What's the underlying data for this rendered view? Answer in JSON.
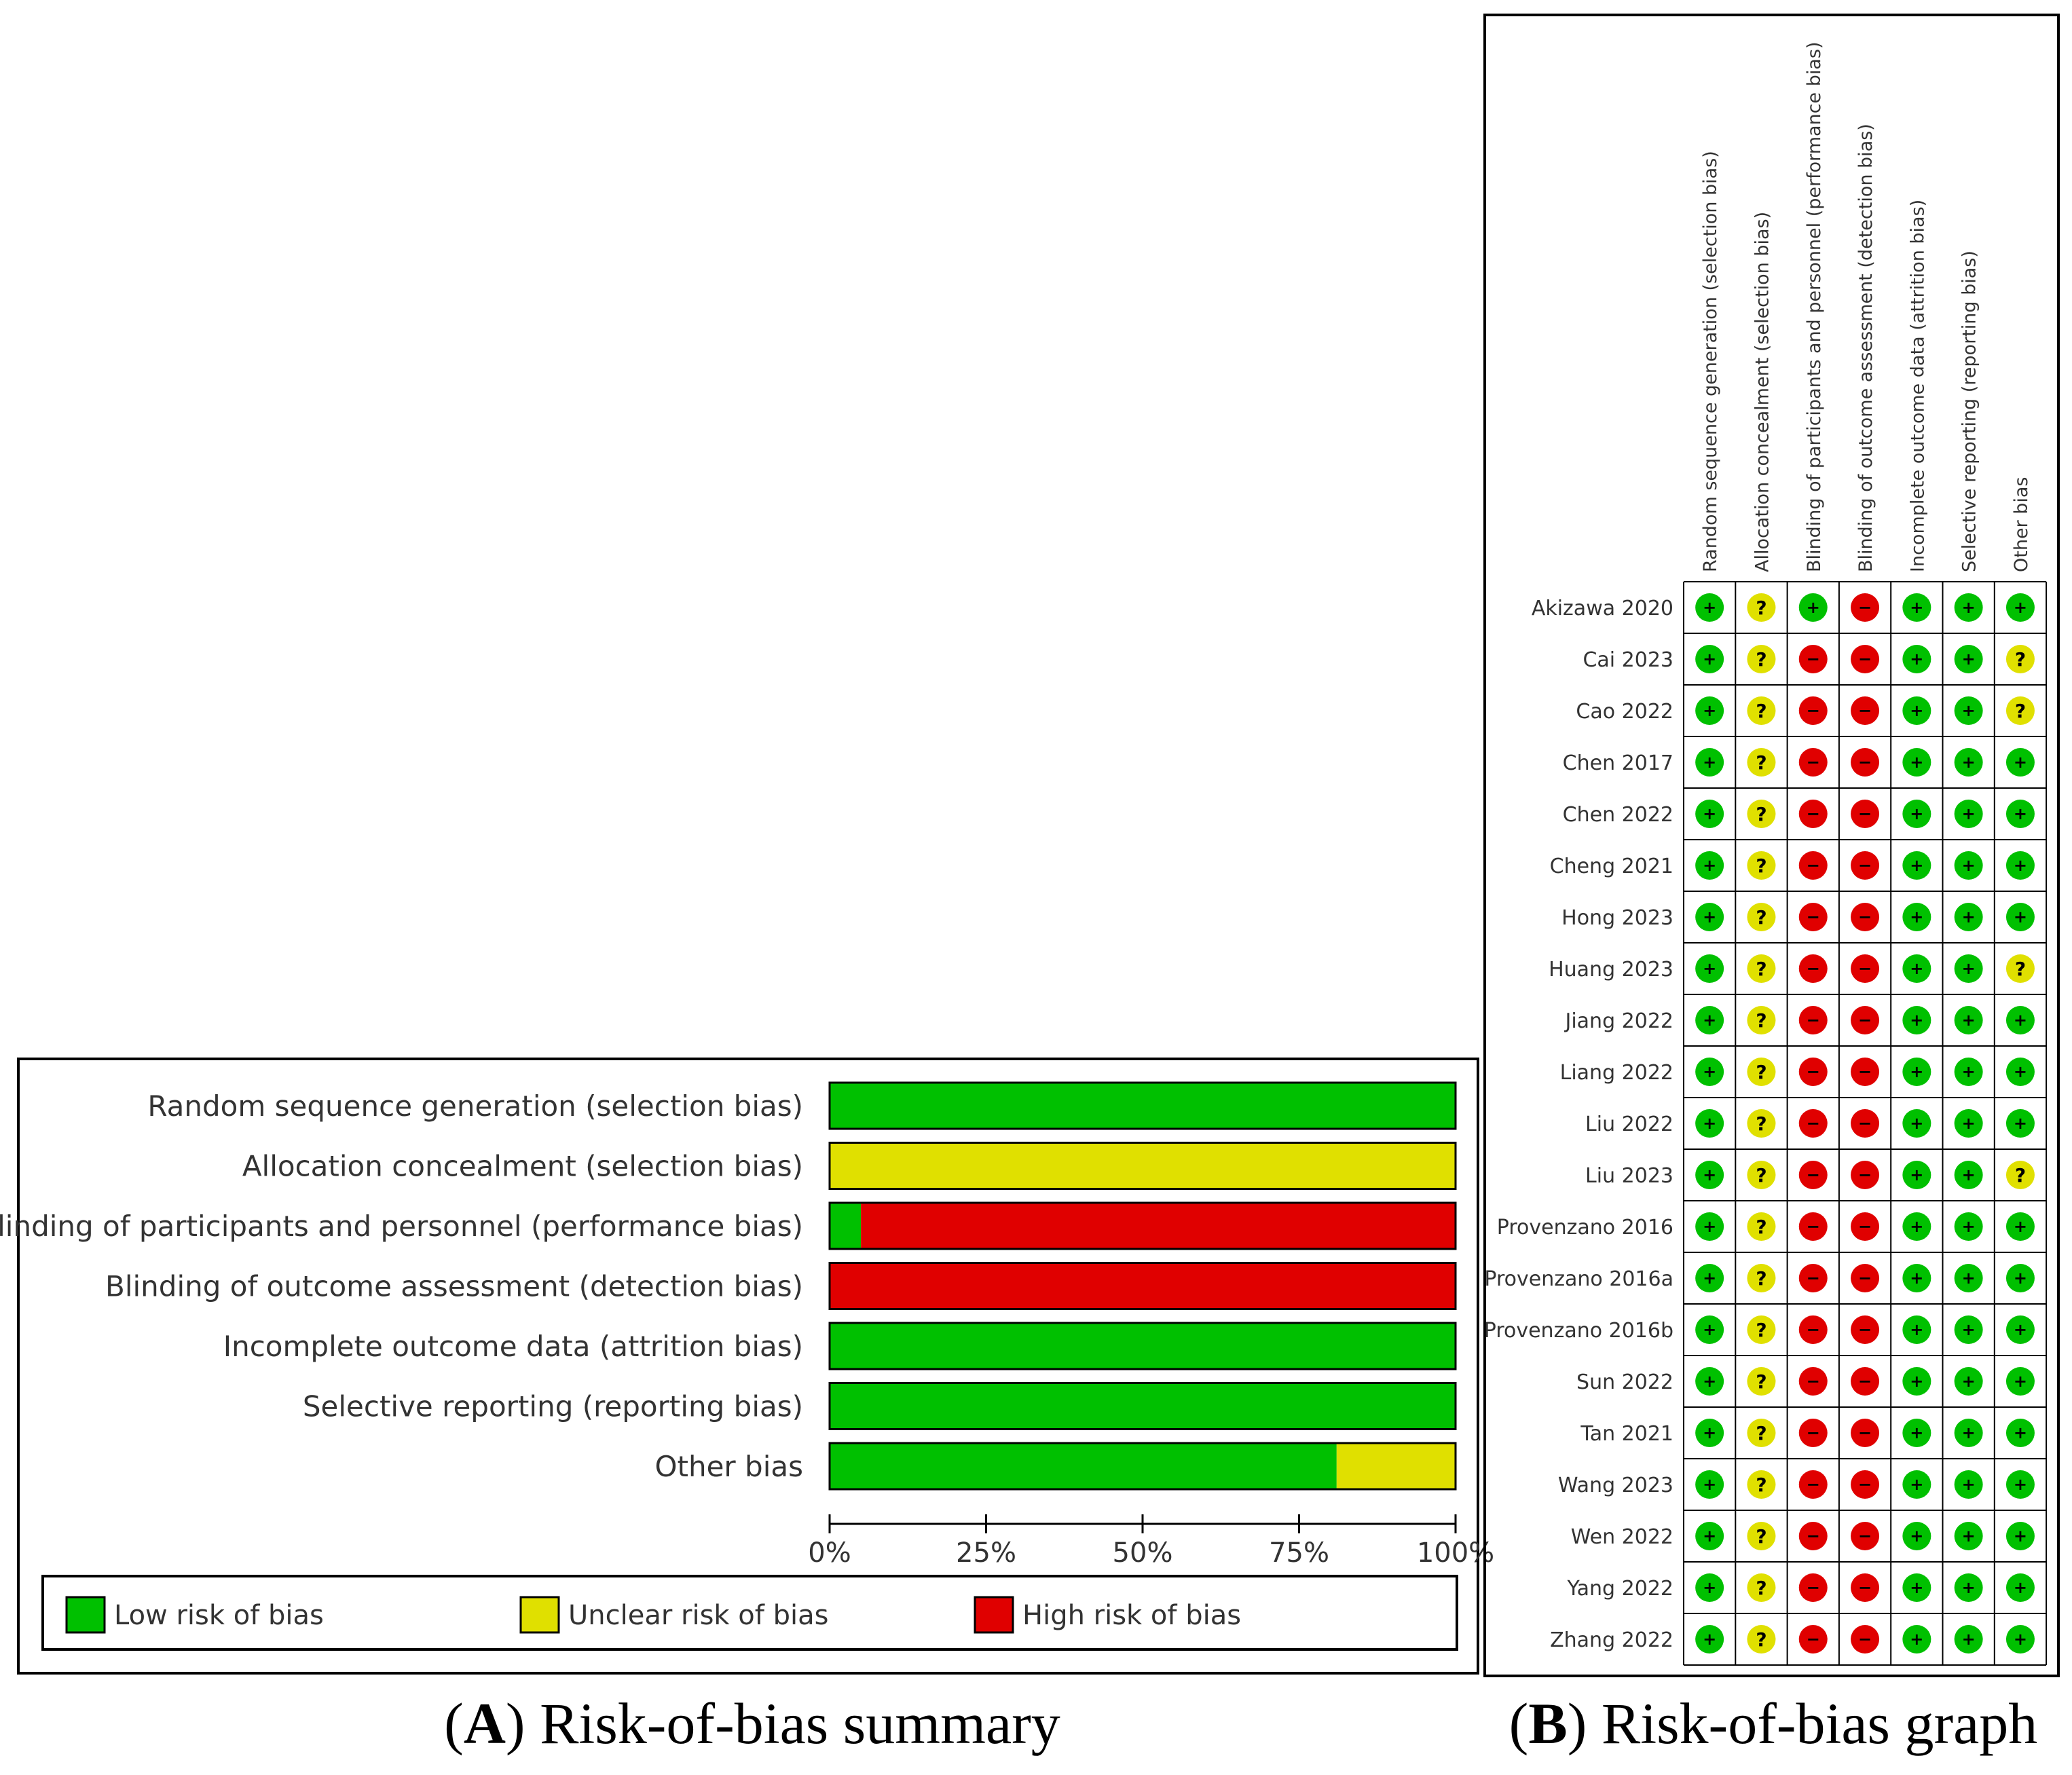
{
  "colors": {
    "low": "#00c000",
    "unclear": "#e0e000",
    "high": "#e00000",
    "frame": "#000000",
    "text": "#333333"
  },
  "captions": {
    "a_letter": "A",
    "a_text": "Risk-of-bias summary",
    "b_letter": "B",
    "b_text": "Risk-of-bias graph"
  },
  "legend": {
    "low": "Low risk of bias",
    "unclear": "Unclear risk of bias",
    "high": "High risk of bias"
  },
  "symbols": {
    "low": "+",
    "unclear": "?",
    "high": "−"
  },
  "chart_data": [
    {
      "type": "bar",
      "orientation": "horizontal",
      "stacked": true,
      "categories": [
        "Random sequence generation (selection bias)",
        "Allocation concealment (selection bias)",
        "Blinding of participants and personnel (performance bias)",
        "Blinding of outcome assessment (detection bias)",
        "Incomplete outcome data (attrition bias)",
        "Selective reporting (reporting bias)",
        "Other bias"
      ],
      "series": [
        {
          "name": "Low risk of bias",
          "values": [
            100,
            0,
            5,
            0,
            100,
            100,
            81
          ]
        },
        {
          "name": "Unclear risk of bias",
          "values": [
            0,
            100,
            0,
            0,
            0,
            0,
            19
          ]
        },
        {
          "name": "High risk of bias",
          "values": [
            0,
            0,
            95,
            100,
            0,
            0,
            0
          ]
        }
      ],
      "xlim": [
        0,
        100
      ],
      "xticks": [
        "0%",
        "25%",
        "50%",
        "75%",
        "100%"
      ],
      "legend_position": "bottom"
    },
    {
      "type": "table",
      "columns": [
        "Random sequence generation (selection bias)",
        "Allocation concealment (selection bias)",
        "Blinding of participants and personnel (performance bias)",
        "Blinding of outcome assessment (detection bias)",
        "Incomplete outcome data (attrition bias)",
        "Selective reporting (reporting bias)",
        "Other bias"
      ],
      "rows": [
        {
          "study": "Akizawa 2020",
          "ratings": [
            "low",
            "unclear",
            "low",
            "high",
            "low",
            "low",
            "low"
          ]
        },
        {
          "study": "Cai 2023",
          "ratings": [
            "low",
            "unclear",
            "high",
            "high",
            "low",
            "low",
            "unclear"
          ]
        },
        {
          "study": "Cao 2022",
          "ratings": [
            "low",
            "unclear",
            "high",
            "high",
            "low",
            "low",
            "unclear"
          ]
        },
        {
          "study": "Chen 2017",
          "ratings": [
            "low",
            "unclear",
            "high",
            "high",
            "low",
            "low",
            "low"
          ]
        },
        {
          "study": "Chen 2022",
          "ratings": [
            "low",
            "unclear",
            "high",
            "high",
            "low",
            "low",
            "low"
          ]
        },
        {
          "study": "Cheng 2021",
          "ratings": [
            "low",
            "unclear",
            "high",
            "high",
            "low",
            "low",
            "low"
          ]
        },
        {
          "study": "Hong 2023",
          "ratings": [
            "low",
            "unclear",
            "high",
            "high",
            "low",
            "low",
            "low"
          ]
        },
        {
          "study": "Huang 2023",
          "ratings": [
            "low",
            "unclear",
            "high",
            "high",
            "low",
            "low",
            "unclear"
          ]
        },
        {
          "study": "Jiang 2022",
          "ratings": [
            "low",
            "unclear",
            "high",
            "high",
            "low",
            "low",
            "low"
          ]
        },
        {
          "study": "Liang 2022",
          "ratings": [
            "low",
            "unclear",
            "high",
            "high",
            "low",
            "low",
            "low"
          ]
        },
        {
          "study": "Liu 2022",
          "ratings": [
            "low",
            "unclear",
            "high",
            "high",
            "low",
            "low",
            "low"
          ]
        },
        {
          "study": "Liu 2023",
          "ratings": [
            "low",
            "unclear",
            "high",
            "high",
            "low",
            "low",
            "unclear"
          ]
        },
        {
          "study": "Provenzano 2016",
          "ratings": [
            "low",
            "unclear",
            "high",
            "high",
            "low",
            "low",
            "low"
          ]
        },
        {
          "study": "Provenzano 2016a",
          "ratings": [
            "low",
            "unclear",
            "high",
            "high",
            "low",
            "low",
            "low"
          ]
        },
        {
          "study": "Provenzano 2016b",
          "ratings": [
            "low",
            "unclear",
            "high",
            "high",
            "low",
            "low",
            "low"
          ]
        },
        {
          "study": "Sun 2022",
          "ratings": [
            "low",
            "unclear",
            "high",
            "high",
            "low",
            "low",
            "low"
          ]
        },
        {
          "study": "Tan 2021",
          "ratings": [
            "low",
            "unclear",
            "high",
            "high",
            "low",
            "low",
            "low"
          ]
        },
        {
          "study": "Wang 2023",
          "ratings": [
            "low",
            "unclear",
            "high",
            "high",
            "low",
            "low",
            "low"
          ]
        },
        {
          "study": "Wen 2022",
          "ratings": [
            "low",
            "unclear",
            "high",
            "high",
            "low",
            "low",
            "low"
          ]
        },
        {
          "study": "Yang 2022",
          "ratings": [
            "low",
            "unclear",
            "high",
            "high",
            "low",
            "low",
            "low"
          ]
        },
        {
          "study": "Zhang 2022",
          "ratings": [
            "low",
            "unclear",
            "high",
            "high",
            "low",
            "low",
            "low"
          ]
        }
      ]
    }
  ]
}
